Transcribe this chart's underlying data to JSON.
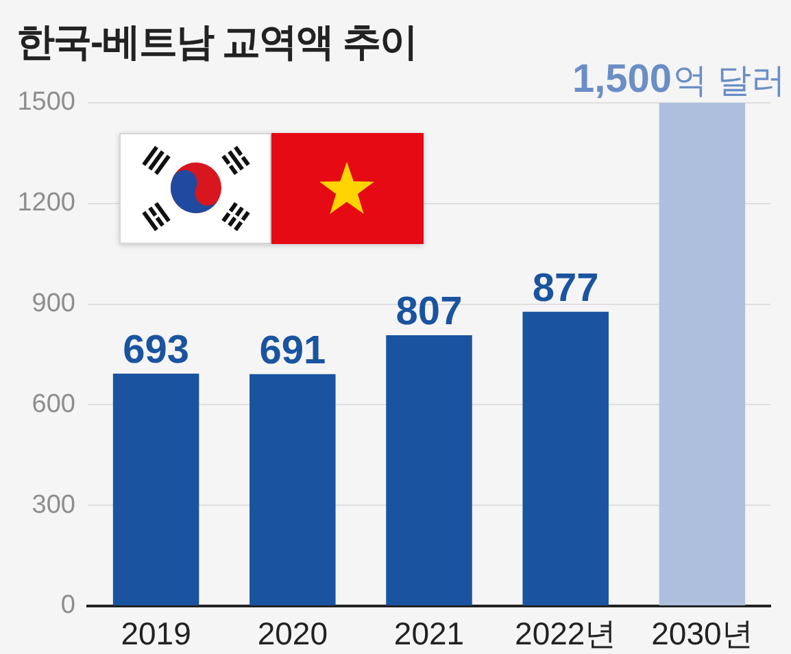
{
  "chart_data": {
    "type": "bar",
    "title": "한국-베트남 교역액 추이",
    "categories": [
      "2019",
      "2020",
      "2021",
      "2022년",
      "2030년"
    ],
    "values": [
      693,
      691,
      807,
      877,
      1500
    ],
    "colors": [
      "#1a54a0",
      "#1a54a0",
      "#1a54a0",
      "#1a54a0",
      "#adbfdc"
    ],
    "value_labels": [
      "693",
      "691",
      "807",
      "877",
      "1,500억 달러"
    ],
    "ylim": [
      0,
      1500
    ],
    "yticks": [
      0,
      300,
      600,
      900,
      1200,
      1500
    ],
    "grid": "y"
  }
}
